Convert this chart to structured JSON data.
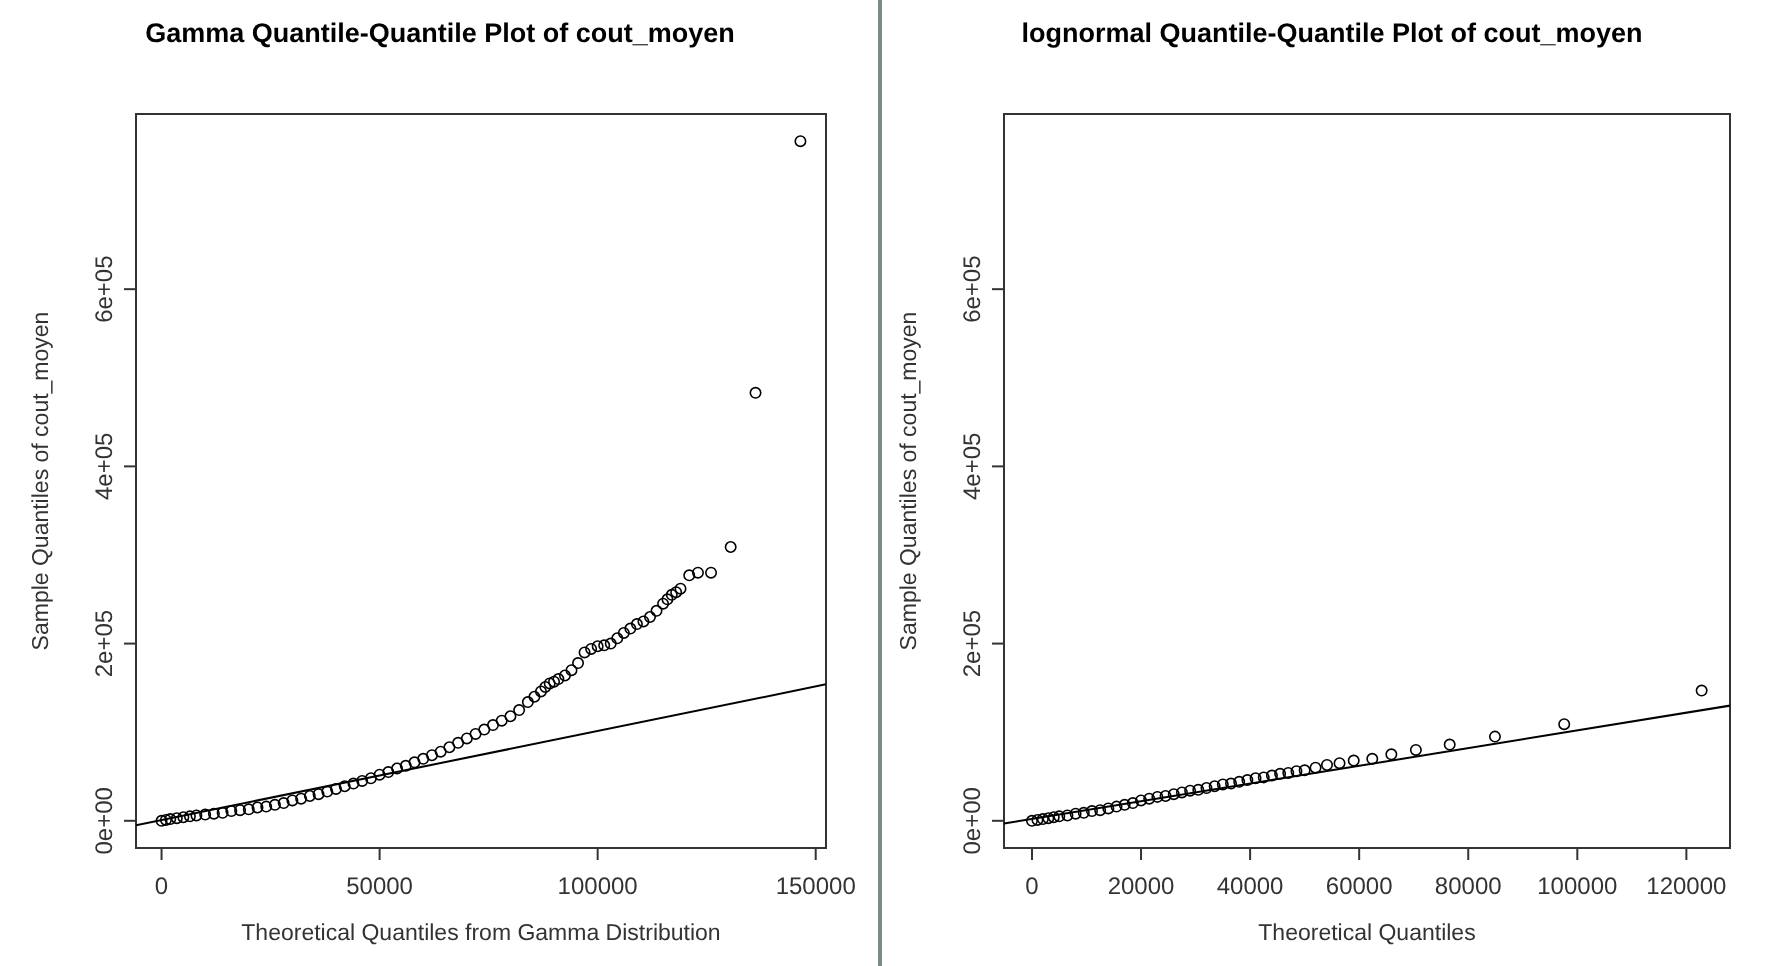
{
  "chart_data": [
    {
      "type": "scatter",
      "title": "Gamma Quantile-Quantile Plot of cout_moyen",
      "xlabel": "Theoretical Quantiles from Gamma Distribution",
      "ylabel": "Sample Quantiles of cout_moyen",
      "xlim": [
        -5860,
        152360
      ],
      "ylim": [
        -30700,
        797700
      ],
      "xticks": [
        0,
        50000,
        100000,
        150000
      ],
      "yticks": [
        {
          "value": 0,
          "label": "0e+00"
        },
        {
          "value": 200000,
          "label": "2e+05"
        },
        {
          "value": 400000,
          "label": "4e+05"
        },
        {
          "value": 600000,
          "label": "6e+05"
        }
      ],
      "series": [
        {
          "marker": "circle",
          "color": "#000000",
          "x": [
            0,
            1000,
            2000,
            3500,
            5000,
            6500,
            8000,
            10000,
            12000,
            14000,
            16000,
            18000,
            20000,
            22000,
            24000,
            26000,
            28000,
            30000,
            32000,
            34000,
            36000,
            38000,
            40000,
            42000,
            44000,
            46000,
            48000,
            50000,
            52000,
            54000,
            56000,
            58000,
            60000,
            62000,
            64000,
            66000,
            68000,
            70000,
            72000,
            74000,
            76000,
            78000,
            80000,
            82000,
            84000,
            85500,
            87000,
            88000,
            89000,
            90000,
            91000,
            92500,
            94000,
            95500,
            97000,
            98500,
            100000,
            101500,
            103000,
            104500,
            106000,
            107500,
            109000,
            110500,
            112000,
            113500,
            115000,
            116000,
            117000,
            118000,
            119000,
            121000,
            123000,
            126000,
            130500,
            136200,
            146500
          ],
          "values": [
            0,
            1000,
            2000,
            3000,
            4000,
            5000,
            6000,
            7000,
            8000,
            9000,
            11000,
            12000,
            13000,
            15000,
            16000,
            18000,
            20000,
            23000,
            25000,
            28000,
            30000,
            33000,
            36000,
            39000,
            42000,
            45000,
            48000,
            52000,
            55000,
            59000,
            62000,
            66000,
            70000,
            74000,
            78000,
            83000,
            88000,
            93000,
            98000,
            103000,
            108000,
            113000,
            118000,
            125000,
            134000,
            140000,
            146000,
            151000,
            155000,
            157000,
            160000,
            164000,
            170000,
            178000,
            190000,
            194000,
            197000,
            198000,
            200000,
            206000,
            212000,
            217000,
            222000,
            225000,
            230000,
            237000,
            245000,
            250000,
            255000,
            258000,
            262000,
            277000,
            280000,
            280000,
            309000,
            483000,
            767000
          ]
        },
        {
          "type": "line",
          "color": "#000000",
          "x": [
            -5860,
            152360
          ],
          "values": [
            -5000,
            154000
          ]
        }
      ]
    },
    {
      "type": "scatter",
      "title": "lognormal Quantile-Quantile Plot of cout_moyen",
      "xlabel": "Theoretical Quantiles",
      "ylabel": "Sample Quantiles of cout_moyen",
      "xlim": [
        -5130,
        128000
      ],
      "ylim": [
        -30700,
        797700
      ],
      "xticks": [
        0,
        20000,
        40000,
        60000,
        80000,
        100000,
        120000
      ],
      "yticks": [
        {
          "value": 0,
          "label": "0e+00"
        },
        {
          "value": 200000,
          "label": "2e+05"
        },
        {
          "value": 400000,
          "label": "4e+05"
        },
        {
          "value": 600000,
          "label": "6e+05"
        }
      ],
      "series": [
        {
          "marker": "circle",
          "color": "#000000",
          "x": [
            0,
            1000,
            2000,
            3000,
            4000,
            5000,
            6500,
            8000,
            9500,
            11000,
            12500,
            14000,
            15500,
            17000,
            18500,
            20000,
            21500,
            23000,
            24500,
            26000,
            27500,
            29000,
            30500,
            32000,
            33500,
            35000,
            36500,
            38000,
            39500,
            41000,
            42500,
            44000,
            45500,
            47000,
            48500,
            50000,
            52000,
            54100,
            56400,
            59000,
            62400,
            65900,
            70400,
            76600,
            84900,
            97600,
            122800
          ],
          "values": [
            0,
            1000,
            2000,
            3000,
            4000,
            5000,
            6000,
            8000,
            9000,
            11000,
            12000,
            14000,
            16000,
            18000,
            20000,
            23000,
            25000,
            27000,
            28000,
            30000,
            32000,
            34000,
            35000,
            37000,
            39000,
            41000,
            42000,
            44000,
            46000,
            48000,
            49000,
            51000,
            53000,
            54000,
            56000,
            57000,
            60000,
            63000,
            65000,
            68000,
            70000,
            75000,
            80000,
            86000,
            95000,
            109000,
            147000
          ]
        },
        {
          "type": "line",
          "color": "#000000",
          "x": [
            -5130,
            128000
          ],
          "values": [
            -3000,
            130000
          ]
        }
      ]
    }
  ]
}
